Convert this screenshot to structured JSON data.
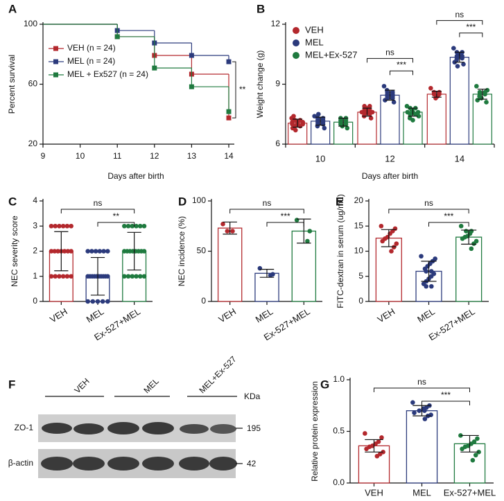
{
  "chart_data": [
    {
      "type": "survival",
      "panel": "A",
      "ylabel": "Percent survival",
      "xlabel": "Days after birth",
      "x": [
        9,
        11,
        12,
        13,
        14
      ],
      "xlim": [
        9,
        14
      ],
      "xticks": [
        9,
        10,
        11,
        12,
        13,
        14
      ],
      "ylim": [
        20,
        100
      ],
      "yticks": [
        20,
        60,
        100
      ],
      "series": [
        {
          "name": "VEH (n = 24)",
          "color": "#b3282d",
          "values": [
            100,
            91.7,
            79.2,
            66.7,
            37.5
          ]
        },
        {
          "name": "MEL (n = 24)",
          "color": "#2b3a7c",
          "values": [
            100,
            95.8,
            87.5,
            79.2,
            75
          ]
        },
        {
          "name": "MEL + Ex527 (n = 24)",
          "color": "#1f7a3f",
          "values": [
            100,
            91.7,
            70.8,
            58.3,
            41.7
          ]
        }
      ],
      "annotation": "**"
    },
    {
      "type": "grouped-bar",
      "panel": "B",
      "ylabel": "Weight change (g)",
      "xlabel": "Days after birth",
      "categories": [
        "10",
        "12",
        "14"
      ],
      "ylim": [
        6,
        12
      ],
      "yticks": [
        6,
        9,
        12
      ],
      "series": [
        {
          "name": "VEH",
          "color": "#b3282d",
          "values": [
            7.05,
            7.6,
            8.5
          ],
          "errors": [
            0.2,
            0.2,
            0.15
          ],
          "points": [
            [
              7.3,
              7.2,
              7.1,
              7.0,
              6.9,
              7.0,
              6.8,
              7.1,
              7.2,
              6.9,
              7.0,
              6.7,
              7.4,
              7.1
            ],
            [
              7.9,
              7.7,
              7.6,
              7.5,
              7.8,
              7.4,
              7.6,
              7.7,
              7.3,
              7.5,
              7.9,
              7.6
            ],
            [
              8.8,
              8.6,
              8.5,
              8.4,
              8.3,
              8.6,
              8.5
            ]
          ]
        },
        {
          "name": "MEL",
          "color": "#2b3a7c",
          "values": [
            7.15,
            8.45,
            10.35
          ],
          "errors": [
            0.2,
            0.25,
            0.25
          ],
          "points": [
            [
              7.4,
              7.2,
              7.0,
              7.3,
              7.1,
              6.9,
              7.2,
              7.0,
              6.8,
              7.3,
              7.1,
              7.5
            ],
            [
              8.9,
              8.6,
              8.5,
              8.3,
              8.4,
              8.7,
              8.2,
              8.5,
              8.1,
              8.4,
              8.6,
              8.3
            ],
            [
              10.8,
              10.6,
              10.4,
              10.3,
              10.5,
              10.2,
              10.1,
              10.3,
              10.0,
              10.4,
              10.6,
              9.9
            ]
          ]
        },
        {
          "name": "MEL+Ex-527",
          "color": "#1f7a3f",
          "values": [
            7.1,
            7.6,
            8.5
          ],
          "errors": [
            0.2,
            0.2,
            0.25
          ],
          "points": [
            [
              7.2,
              7.1,
              7.0,
              7.3,
              6.9,
              7.0,
              7.2,
              7.1,
              6.8,
              7.3
            ],
            [
              7.9,
              7.8,
              7.6,
              7.5,
              7.7,
              7.3,
              7.6,
              7.4,
              7.8,
              7.5,
              7.2,
              7.6
            ],
            [
              8.9,
              8.7,
              8.5,
              8.6,
              8.3,
              8.4,
              8.2,
              8.5,
              8.1,
              8.6
            ]
          ]
        }
      ],
      "annotations": [
        null,
        [
          "ns",
          "***"
        ],
        [
          "ns",
          "***"
        ]
      ]
    },
    {
      "type": "bar",
      "panel": "C",
      "ylabel": "NEC severity score",
      "categories": [
        "VEH",
        "MEL",
        "Ex-527+MEL"
      ],
      "colors": [
        "#b3282d",
        "#2b3a7c",
        "#1f7a3f"
      ],
      "ylim": [
        0,
        4
      ],
      "yticks": [
        0,
        1,
        2,
        3,
        4
      ],
      "values": [
        2.0,
        1.0,
        2.0
      ],
      "errors": [
        0.78,
        0.75,
        0.75
      ],
      "points": [
        [
          3,
          3,
          3,
          3,
          3,
          3,
          2,
          2,
          2,
          2,
          2,
          2,
          2,
          1,
          1,
          1,
          1,
          1,
          1
        ],
        [
          2,
          2,
          2,
          2,
          2,
          2,
          1,
          1,
          1,
          1,
          1,
          1,
          1,
          1,
          1,
          1,
          0,
          0,
          0,
          0,
          0
        ],
        [
          3,
          3,
          3,
          3,
          3,
          3,
          2,
          2,
          2,
          2,
          2,
          2,
          2,
          2,
          1,
          1,
          1,
          1,
          1,
          1
        ]
      ],
      "annotations": [
        "ns",
        "**"
      ]
    },
    {
      "type": "bar",
      "panel": "D",
      "ylabel": "NEC incidence (%)",
      "categories": [
        "VEH",
        "MEL",
        "Ex-527+MEL"
      ],
      "colors": [
        "#b3282d",
        "#2b3a7c",
        "#1f7a3f"
      ],
      "ylim": [
        0,
        100
      ],
      "yticks": [
        0,
        50,
        100
      ],
      "values": [
        73,
        28,
        70
      ],
      "errors": [
        6,
        4,
        12
      ],
      "points": [
        [
          77,
          70,
          70
        ],
        [
          33,
          27,
          26
        ],
        [
          81,
          70,
          60
        ]
      ],
      "annotations": [
        "ns",
        "***"
      ]
    },
    {
      "type": "bar",
      "panel": "E",
      "ylabel": "FITC-dextran in serum (ug/mL)",
      "categories": [
        "VEH",
        "MEL",
        "Ex-527+MEL"
      ],
      "colors": [
        "#b3282d",
        "#2b3a7c",
        "#1f7a3f"
      ],
      "ylim": [
        0,
        20
      ],
      "yticks": [
        0,
        5,
        10,
        15,
        20
      ],
      "values": [
        12.6,
        6.0,
        12.8
      ],
      "errors": [
        1.7,
        2.0,
        1.4
      ],
      "points": [
        [
          15.0,
          14.5,
          14.0,
          13.5,
          12.8,
          12.5,
          12.0,
          11.5,
          10.8,
          10.0
        ],
        [
          9.0,
          8.5,
          8.0,
          7.5,
          7.0,
          6.5,
          6.0,
          6.0,
          5.5,
          5.0,
          4.5,
          4.0,
          3.5,
          3.0,
          3.0
        ],
        [
          15.0,
          14.0,
          14.0,
          13.5,
          13.0,
          12.8,
          12.5,
          12.0,
          11.5,
          10.5
        ]
      ],
      "annotations": [
        "ns",
        "***"
      ]
    },
    {
      "type": "bar",
      "panel": "G",
      "ylabel": "Relative protein expression",
      "categories": [
        "VEH",
        "MEL",
        "Ex-527+MEL"
      ],
      "colors": [
        "#b3282d",
        "#2b3a7c",
        "#1f7a3f"
      ],
      "ylim": [
        0,
        1
      ],
      "yticks": [
        {
          "value": 0,
          "label": "0.0"
        },
        {
          "value": 0.5,
          "label": "0.5"
        },
        {
          "value": 1,
          "label": "1.0"
        }
      ],
      "values": [
        0.36,
        0.7,
        0.38
      ],
      "errors": [
        0.06,
        0.05,
        0.08
      ],
      "points": [
        [
          0.48,
          0.44,
          0.4,
          0.38,
          0.36,
          0.35,
          0.33,
          0.3,
          0.28,
          0.26
        ],
        [
          0.78,
          0.75,
          0.73,
          0.72,
          0.7,
          0.7,
          0.68,
          0.66,
          0.65,
          0.62
        ],
        [
          0.46,
          0.43,
          0.4,
          0.38,
          0.36,
          0.35,
          0.33,
          0.3,
          0.27,
          0.22
        ]
      ],
      "annotations": [
        "ns",
        "***"
      ]
    }
  ],
  "blot": {
    "panel": "F",
    "groups": [
      "VEH",
      "MEL",
      "MEL+Ex-527"
    ],
    "unit": "KDa",
    "rows": [
      {
        "label": "ZO-1",
        "kda": 195
      },
      {
        "label": "β-actin",
        "kda": 42
      }
    ]
  }
}
